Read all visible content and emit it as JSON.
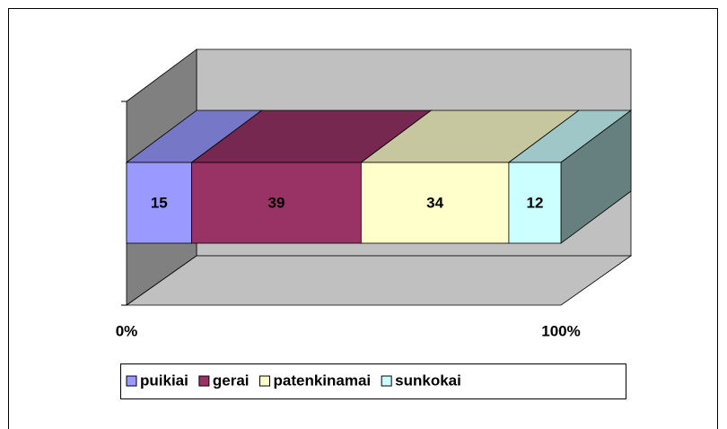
{
  "chart_data": {
    "type": "bar3d_stacked_percent",
    "series": [
      {
        "name": "puikiai",
        "color": "#9999ff",
        "values": [
          15
        ]
      },
      {
        "name": "gerai",
        "color": "#993366",
        "values": [
          39
        ]
      },
      {
        "name": "patenkinamai",
        "color": "#ffffcc",
        "values": [
          34
        ]
      },
      {
        "name": "sunkokai",
        "color": "#ccffff",
        "values": [
          12
        ]
      }
    ],
    "xlim": [
      0,
      100
    ],
    "xticks": [
      {
        "value": 0,
        "label": "0%"
      },
      {
        "value": 100,
        "label": "100%"
      }
    ],
    "legend": "bottom"
  }
}
